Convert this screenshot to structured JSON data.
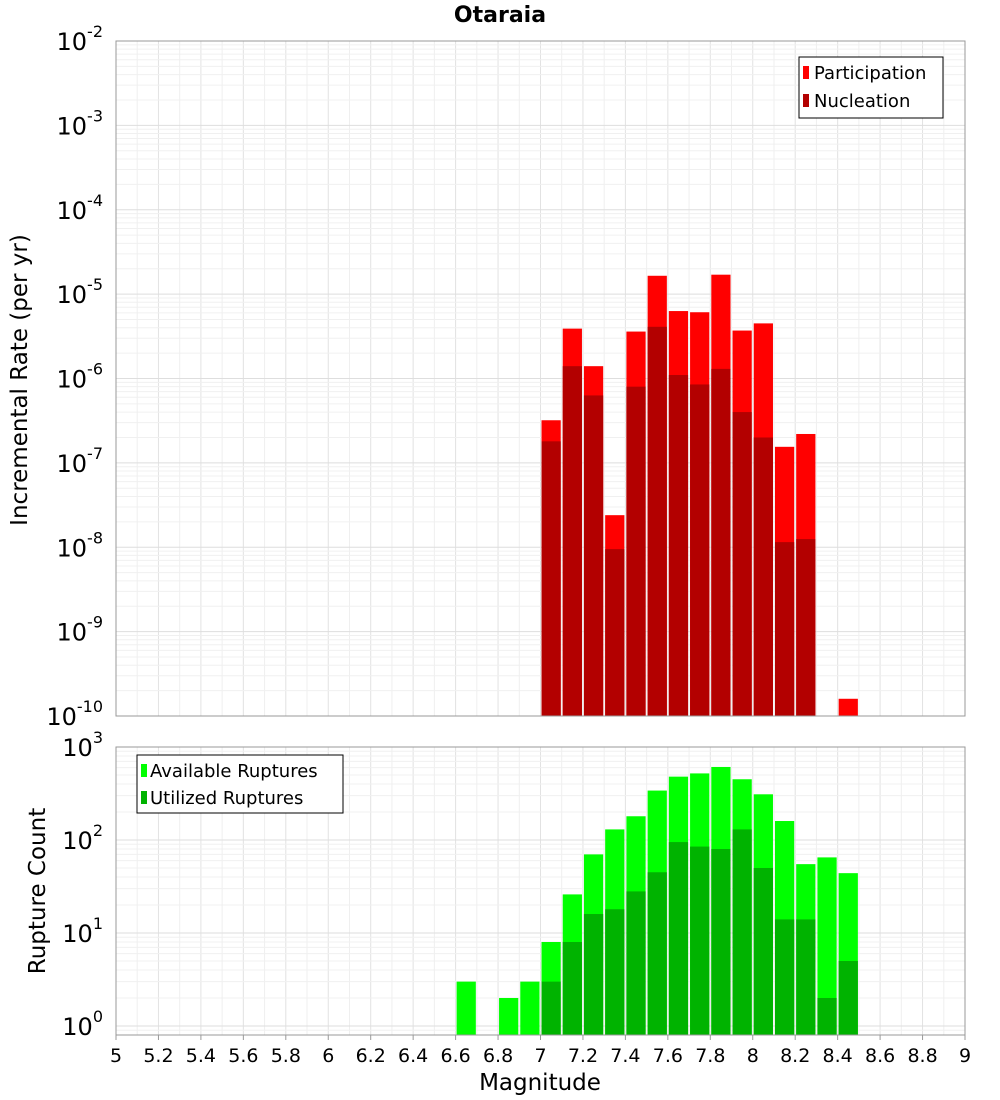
{
  "chart_data": [
    {
      "type": "bar",
      "title": "Otaraia",
      "ylabel": "Incremental Rate (per yr)",
      "xlabel": "",
      "yscale": "log",
      "ylim": [
        1e-10,
        0.01
      ],
      "xlim": [
        5,
        9
      ],
      "ytick_exponents": [
        "-10",
        "-9",
        "-8",
        "-7",
        "-6",
        "-5",
        "-4",
        "-3",
        "-2"
      ],
      "ytick_base": "10",
      "legend": {
        "placement": "top-right",
        "entries": [
          "Participation",
          "Nucleation"
        ]
      },
      "colors": {
        "Participation": "#ff0000",
        "Nucleation": "#b30000"
      },
      "grid": true,
      "bin_width": 0.1,
      "series": [
        {
          "name": "Participation",
          "x": [
            7.05,
            7.15,
            7.25,
            7.35,
            7.45,
            7.55,
            7.65,
            7.75,
            7.85,
            7.95,
            8.05,
            8.15,
            8.25,
            8.45
          ],
          "values": [
            3.2e-07,
            3.9e-06,
            1.4e-06,
            2.4e-08,
            3.6e-06,
            1.65e-05,
            6.3e-06,
            6.1e-06,
            1.7e-05,
            3.7e-06,
            4.5e-06,
            1.55e-07,
            2.2e-07,
            1.6e-10
          ]
        },
        {
          "name": "Nucleation",
          "x": [
            7.05,
            7.15,
            7.25,
            7.35,
            7.45,
            7.55,
            7.65,
            7.75,
            7.85,
            7.95,
            8.05,
            8.15,
            8.25
          ],
          "values": [
            1.8e-07,
            1.4e-06,
            6.3e-07,
            9.5e-09,
            8e-07,
            4.1e-06,
            1.1e-06,
            8.5e-07,
            1.3e-06,
            4e-07,
            2e-07,
            1.15e-08,
            1.25e-08
          ]
        }
      ]
    },
    {
      "type": "bar",
      "title": "",
      "ylabel": "Rupture Count",
      "xlabel": "Magnitude",
      "yscale": "log",
      "ylim": [
        0.8,
        1000
      ],
      "xlim": [
        5,
        9
      ],
      "xticks": [
        "5",
        "5.2",
        "5.4",
        "5.6",
        "5.8",
        "6",
        "6.2",
        "6.4",
        "6.6",
        "6.8",
        "7",
        "7.2",
        "7.4",
        "7.6",
        "7.8",
        "8",
        "8.2",
        "8.4",
        "8.6",
        "8.8",
        "9"
      ],
      "ytick_exponents": [
        "0",
        "1",
        "2",
        "3"
      ],
      "ytick_base": "10",
      "legend": {
        "placement": "top-left",
        "entries": [
          "Available Ruptures",
          "Utilized Ruptures"
        ]
      },
      "colors": {
        "Available Ruptures": "#00ff00",
        "Utilized Ruptures": "#00b300"
      },
      "grid": true,
      "bin_width": 0.1,
      "series": [
        {
          "name": "Available Ruptures",
          "x": [
            6.65,
            6.85,
            6.95,
            7.05,
            7.15,
            7.25,
            7.35,
            7.45,
            7.55,
            7.65,
            7.75,
            7.85,
            7.95,
            8.05,
            8.15,
            8.25,
            8.35,
            8.45
          ],
          "values": [
            3,
            2,
            3,
            8,
            26,
            70,
            130,
            180,
            340,
            480,
            520,
            610,
            450,
            310,
            160,
            55,
            65,
            44
          ]
        },
        {
          "name": "Utilized Ruptures",
          "x": [
            7.05,
            7.15,
            7.25,
            7.35,
            7.45,
            7.55,
            7.65,
            7.75,
            7.85,
            7.95,
            8.05,
            8.15,
            8.25,
            8.35,
            8.45
          ],
          "values": [
            3,
            8,
            16,
            18,
            28,
            45,
            95,
            85,
            80,
            130,
            50,
            14,
            14,
            2,
            5
          ]
        }
      ]
    }
  ]
}
